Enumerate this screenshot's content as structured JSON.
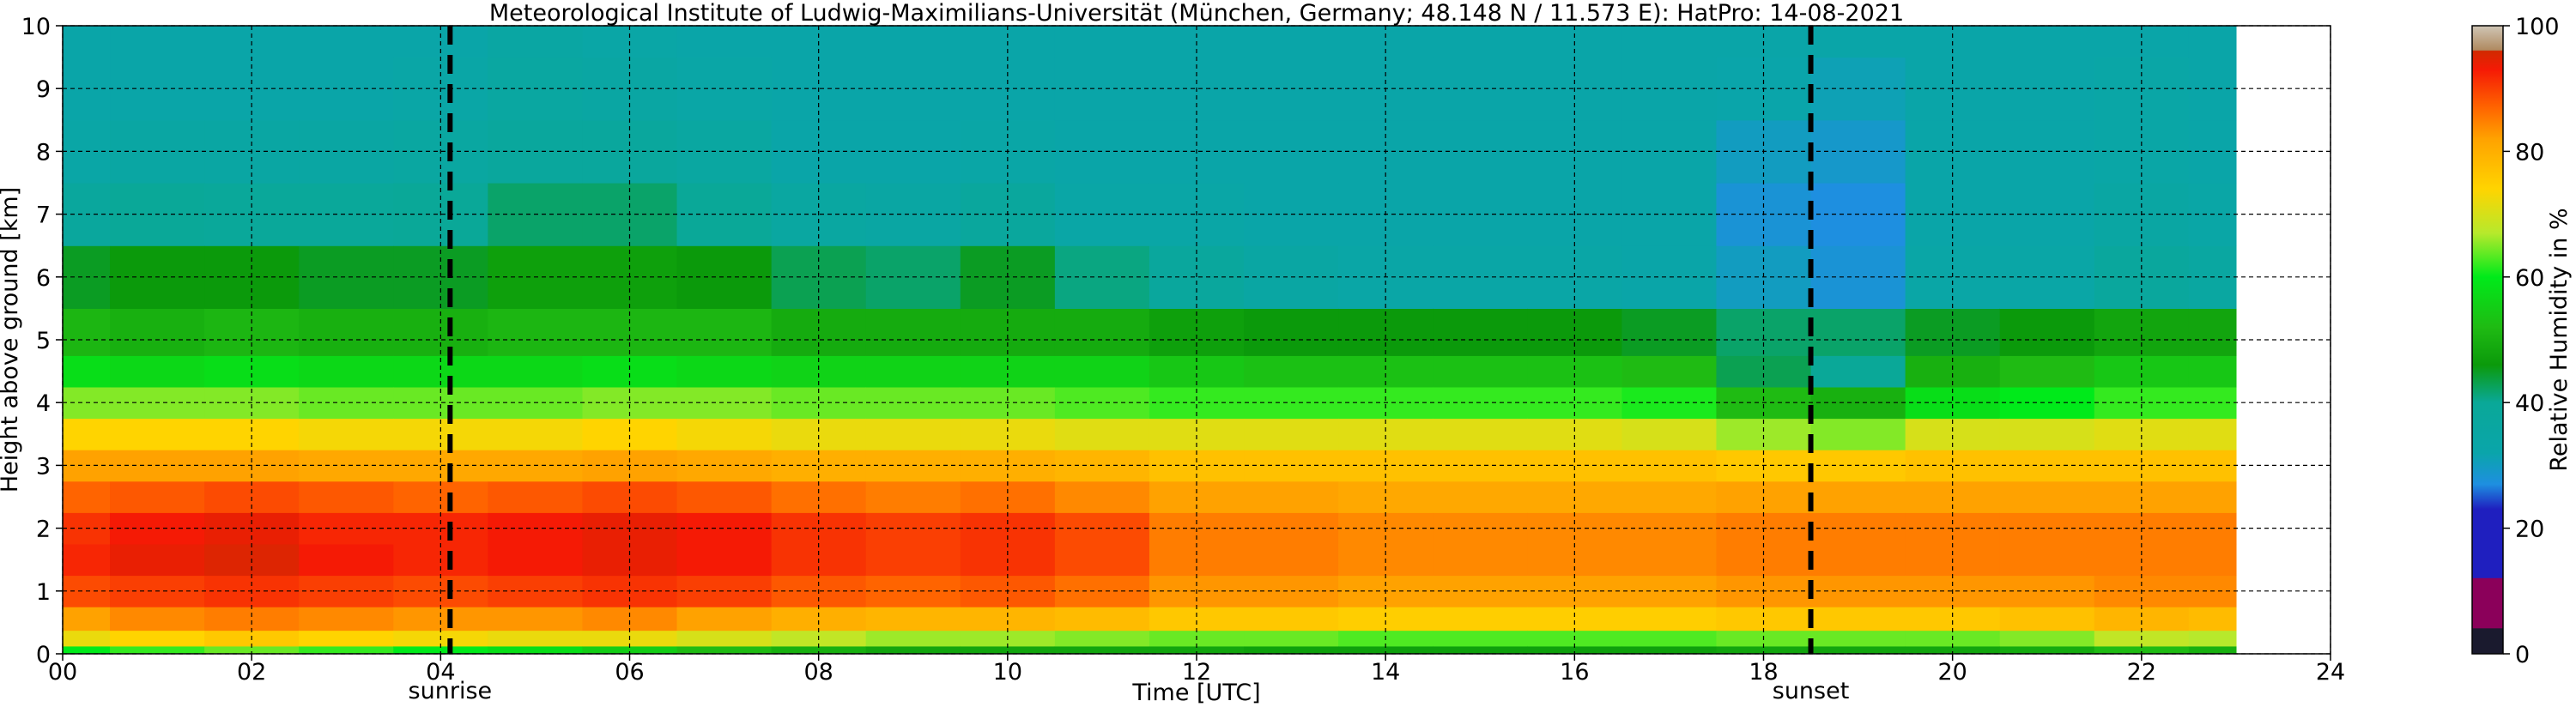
{
  "chart_data": {
    "type": "heatmap",
    "title": "Meteorological Institute of Ludwig-Maximilians-Universität (München, Germany; 48.148 N / 11.573 E):    HatPro: 14-08-2021",
    "xlabel": "Time [UTC]",
    "ylabel": "Height above ground [km]",
    "xlim": [
      0,
      24
    ],
    "ylim": [
      0,
      10
    ],
    "x_ticks": [
      {
        "value": 0,
        "label": "00"
      },
      {
        "value": 2,
        "label": "02"
      },
      {
        "value": 4,
        "label": "04"
      },
      {
        "value": 6,
        "label": "06"
      },
      {
        "value": 8,
        "label": "08"
      },
      {
        "value": 10,
        "label": "10"
      },
      {
        "value": 12,
        "label": "12"
      },
      {
        "value": 14,
        "label": "14"
      },
      {
        "value": 16,
        "label": "16"
      },
      {
        "value": 18,
        "label": "18"
      },
      {
        "value": 20,
        "label": "20"
      },
      {
        "value": 22,
        "label": "22"
      },
      {
        "value": 24,
        "label": "24"
      }
    ],
    "y_ticks": [
      0,
      1,
      2,
      3,
      4,
      5,
      6,
      7,
      8,
      9,
      10
    ],
    "grid": true,
    "data_end_hour": 23,
    "time_hours": [
      0,
      1,
      2,
      3,
      4,
      5,
      6,
      7,
      8,
      9,
      10,
      11,
      12,
      13,
      14,
      15,
      16,
      17,
      18,
      19,
      20,
      21,
      22,
      23
    ],
    "height_levels_km": [
      0,
      0.25,
      0.5,
      1,
      1.5,
      2,
      2.5,
      3,
      3.5,
      4,
      4.5,
      5,
      6,
      7,
      8,
      9,
      10
    ],
    "relative_humidity_percent": [
      [
        60,
        72,
        82,
        89,
        92,
        91,
        87,
        82,
        74,
        65,
        58,
        51,
        45,
        38,
        34,
        33,
        33
      ],
      [
        62,
        74,
        84,
        90,
        94,
        93,
        88,
        82,
        74,
        65,
        57,
        50,
        46,
        40,
        35,
        33,
        33
      ],
      [
        64,
        76,
        85,
        91,
        95,
        94,
        89,
        82,
        74,
        65,
        58,
        51,
        46,
        39,
        35,
        33,
        33
      ],
      [
        62,
        74,
        84,
        90,
        93,
        92,
        88,
        81,
        73,
        64,
        57,
        50,
        45,
        39,
        35,
        33,
        33
      ],
      [
        60,
        73,
        83,
        89,
        92,
        92,
        87,
        81,
        73,
        64,
        57,
        50,
        45,
        40,
        36,
        34,
        33
      ],
      [
        58,
        72,
        83,
        90,
        93,
        93,
        88,
        81,
        73,
        64,
        57,
        51,
        47,
        42,
        38,
        36,
        35
      ],
      [
        55,
        72,
        84,
        91,
        94,
        94,
        89,
        82,
        74,
        65,
        58,
        51,
        47,
        42,
        38,
        35,
        34
      ],
      [
        52,
        70,
        82,
        90,
        93,
        93,
        88,
        81,
        73,
        65,
        57,
        51,
        46,
        40,
        36,
        34,
        33
      ],
      [
        50,
        68,
        80,
        88,
        91,
        91,
        86,
        80,
        72,
        64,
        56,
        49,
        43,
        36,
        33,
        33,
        33
      ],
      [
        48,
        66,
        79,
        87,
        90,
        90,
        85,
        80,
        72,
        64,
        56,
        49,
        42,
        35,
        33,
        33,
        33
      ],
      [
        48,
        66,
        79,
        88,
        91,
        91,
        86,
        80,
        72,
        64,
        56,
        49,
        45,
        38,
        34,
        33,
        33
      ],
      [
        48,
        65,
        78,
        86,
        89,
        89,
        84,
        79,
        71,
        63,
        56,
        49,
        41,
        34,
        33,
        33,
        33
      ],
      [
        48,
        64,
        76,
        83,
        85,
        85,
        82,
        77,
        71,
        62,
        54,
        47,
        38,
        34,
        33,
        33,
        33
      ],
      [
        47,
        64,
        76,
        83,
        85,
        85,
        82,
        77,
        71,
        62,
        53,
        46,
        35,
        33,
        33,
        33,
        33
      ],
      [
        47,
        63,
        75,
        82,
        84,
        84,
        81,
        77,
        71,
        62,
        53,
        46,
        34,
        33,
        33,
        33,
        33
      ],
      [
        47,
        63,
        75,
        82,
        84,
        84,
        81,
        77,
        71,
        62,
        53,
        46,
        34,
        33,
        33,
        33,
        33
      ],
      [
        47,
        63,
        75,
        82,
        84,
        84,
        81,
        77,
        71,
        62,
        53,
        46,
        34,
        33,
        33,
        33,
        33
      ],
      [
        47,
        63,
        75,
        82,
        84,
        84,
        81,
        77,
        70,
        61,
        52,
        45,
        33,
        33,
        33,
        33,
        33
      ],
      [
        48,
        64,
        76,
        83,
        85,
        85,
        82,
        76,
        66,
        52,
        43,
        42,
        30,
        28,
        30,
        32,
        33
      ],
      [
        48,
        64,
        76,
        83,
        85,
        85,
        82,
        76,
        65,
        50,
        40,
        42,
        28,
        27,
        29,
        31,
        33
      ],
      [
        48,
        64,
        76,
        83,
        85,
        85,
        82,
        77,
        70,
        58,
        50,
        45,
        34,
        33,
        33,
        33,
        33
      ],
      [
        49,
        65,
        77,
        83,
        85,
        85,
        82,
        77,
        70,
        60,
        52,
        46,
        34,
        33,
        33,
        33,
        33
      ],
      [
        52,
        68,
        79,
        84,
        85,
        85,
        82,
        77,
        71,
        62,
        54,
        48,
        38,
        35,
        34,
        34,
        33
      ],
      [
        50,
        67,
        78,
        84,
        85,
        85,
        82,
        77,
        71,
        62,
        54,
        48,
        36,
        34,
        33,
        33,
        33
      ]
    ],
    "annotations": [
      {
        "text": "sunrise",
        "x": 4.1
      },
      {
        "text": "sunset",
        "x": 18.5
      }
    ],
    "colorbar": {
      "label": "Relative Humidity in %",
      "min": 0,
      "max": 100,
      "ticks": [
        0,
        20,
        40,
        60,
        80,
        100
      ],
      "stops": [
        {
          "value": 0,
          "color": "#1a1a2e"
        },
        {
          "value": 4,
          "color": "#1a1a2e"
        },
        {
          "value": 4.1,
          "color": "#8b005a"
        },
        {
          "value": 12,
          "color": "#8b005a"
        },
        {
          "value": 12.1,
          "color": "#1f1fbf"
        },
        {
          "value": 23,
          "color": "#1f1fbf"
        },
        {
          "value": 27,
          "color": "#1e8fe0"
        },
        {
          "value": 32,
          "color": "#0aa5aa"
        },
        {
          "value": 40,
          "color": "#0aa898"
        },
        {
          "value": 46,
          "color": "#0b9a0b"
        },
        {
          "value": 52,
          "color": "#1fbb13"
        },
        {
          "value": 60,
          "color": "#00ea1a"
        },
        {
          "value": 67,
          "color": "#b7e92c"
        },
        {
          "value": 74,
          "color": "#ffd400"
        },
        {
          "value": 82,
          "color": "#ffa200"
        },
        {
          "value": 87,
          "color": "#ff6400"
        },
        {
          "value": 93,
          "color": "#f51a05"
        },
        {
          "value": 96,
          "color": "#d12a00"
        },
        {
          "value": 96.1,
          "color": "#b08a60"
        },
        {
          "value": 100,
          "color": "#cfc5b5"
        }
      ]
    }
  }
}
